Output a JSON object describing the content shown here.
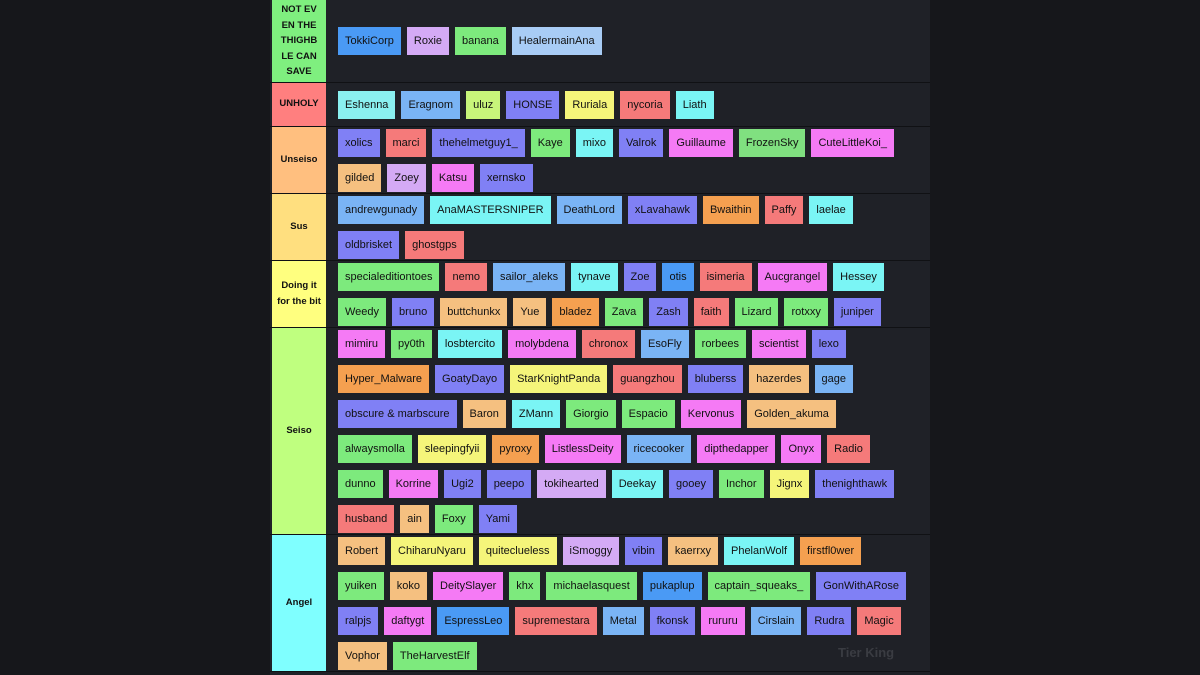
{
  "tiers": [
    {
      "label": "NOT EVEN THE THIGHBLE CAN SAVE",
      "color": "#7fef7f",
      "rows": [
        [
          {
            "name": "TokkiCorp",
            "color": "#4a9af5"
          },
          {
            "name": "Roxie",
            "color": "#d4aaf5"
          },
          {
            "name": "banana",
            "color": "#7dea7d"
          },
          {
            "name": "HealermainAna",
            "color": "#a8ccf5"
          }
        ]
      ]
    },
    {
      "label": "UNHOLY",
      "color": "#ff7f7f",
      "rows": [
        [
          {
            "name": "Eshenna",
            "color": "#8af0f0"
          },
          {
            "name": "Eragnom",
            "color": "#7ab4f5"
          },
          {
            "name": "uluz",
            "color": "#c8f57a"
          },
          {
            "name": "HONSE",
            "color": "#8080f5"
          },
          {
            "name": "Ruriala",
            "color": "#f5f57a"
          },
          {
            "name": "nycoria",
            "color": "#f57a7a"
          },
          {
            "name": "Liath",
            "color": "#7af5f5"
          }
        ]
      ]
    },
    {
      "label": "Unseiso",
      "color": "#ffbf7f",
      "rows": [
        [
          {
            "name": "xolics",
            "color": "#8080f5"
          },
          {
            "name": "marci",
            "color": "#f57a7a"
          },
          {
            "name": "thehelmetguy1_",
            "color": "#8080f5"
          },
          {
            "name": "Kaye",
            "color": "#7dea7d"
          },
          {
            "name": "mixo",
            "color": "#7af5f5"
          },
          {
            "name": "Valrok",
            "color": "#8080f5"
          },
          {
            "name": "Guillaume",
            "color": "#f57af5"
          },
          {
            "name": "FrozenSky",
            "color": "#80e080"
          },
          {
            "name": "CuteLittleKoi_",
            "color": "#f57af5"
          }
        ],
        [
          {
            "name": "gilded",
            "color": "#f5c080"
          },
          {
            "name": "Zoey",
            "color": "#d4aaf5"
          },
          {
            "name": "Katsu",
            "color": "#f57af5"
          },
          {
            "name": "xernsko",
            "color": "#8080f5"
          }
        ]
      ]
    },
    {
      "label": "Sus",
      "color": "#ffdf7f",
      "rows": [
        [
          {
            "name": "andrewgunady",
            "color": "#7ab4f5"
          },
          {
            "name": "AnaMASTERSNIPER",
            "color": "#7af5f5"
          },
          {
            "name": "DeathLord",
            "color": "#7ab4f5"
          },
          {
            "name": "xLavahawk",
            "color": "#8080f5"
          },
          {
            "name": "Bwaithin",
            "color": "#f5a050"
          },
          {
            "name": "Paffy",
            "color": "#f57a7a"
          },
          {
            "name": "laelae",
            "color": "#7af5f5"
          }
        ],
        [
          {
            "name": "oldbrisket",
            "color": "#8080f5"
          },
          {
            "name": "ghostgps",
            "color": "#f57a7a"
          }
        ]
      ]
    },
    {
      "label": "Doing it for the bit",
      "color": "#ffff7f",
      "rows": [
        [
          {
            "name": "specialeditiontoes",
            "color": "#7dea7d"
          },
          {
            "name": "nemo",
            "color": "#f57a7a"
          },
          {
            "name": "sailor_aleks",
            "color": "#7ab4f5"
          },
          {
            "name": "tynave",
            "color": "#7af5f5"
          },
          {
            "name": "Zoe",
            "color": "#8080f5"
          },
          {
            "name": "otis",
            "color": "#4a9af5"
          },
          {
            "name": "isimeria",
            "color": "#f57a7a"
          },
          {
            "name": "Aucgrangel",
            "color": "#f57af5"
          },
          {
            "name": "Hessey",
            "color": "#7af5f5"
          }
        ],
        [
          {
            "name": "Weedy",
            "color": "#7dea7d"
          },
          {
            "name": "bruno",
            "color": "#8080f5"
          },
          {
            "name": "buttchunkx",
            "color": "#f5c080"
          },
          {
            "name": "Yue",
            "color": "#f5c080"
          },
          {
            "name": "bladez",
            "color": "#f5a050"
          },
          {
            "name": "Zava",
            "color": "#7dea7d"
          },
          {
            "name": "Zash",
            "color": "#8080f5"
          },
          {
            "name": "faith",
            "color": "#f57a7a"
          },
          {
            "name": "Lizard",
            "color": "#7dea7d"
          },
          {
            "name": "rotxxy",
            "color": "#7dea7d"
          },
          {
            "name": "juniper",
            "color": "#8080f5"
          }
        ]
      ]
    },
    {
      "label": "Seiso",
      "color": "#bfff7f",
      "rows": [
        [
          {
            "name": "mimiru",
            "color": "#f57af5"
          },
          {
            "name": "py0th",
            "color": "#7dea7d"
          },
          {
            "name": "losbtercito",
            "color": "#7af5f5"
          },
          {
            "name": "molybdena",
            "color": "#f57af5"
          },
          {
            "name": "chronox",
            "color": "#f57a7a"
          },
          {
            "name": "EsoFly",
            "color": "#7ab4f5"
          },
          {
            "name": "rorbees",
            "color": "#7dea7d"
          },
          {
            "name": "scientist",
            "color": "#f57af5"
          },
          {
            "name": "lexo",
            "color": "#8080f5"
          }
        ],
        [
          {
            "name": "Hyper_Malware",
            "color": "#f5a050"
          },
          {
            "name": "GoatyDayo",
            "color": "#8080f5"
          },
          {
            "name": "StarKnightPanda",
            "color": "#f5f57a"
          },
          {
            "name": "guangzhou",
            "color": "#f57a7a"
          },
          {
            "name": "bluberss",
            "color": "#8080f5"
          },
          {
            "name": "hazerdes",
            "color": "#f5c080"
          },
          {
            "name": "gage",
            "color": "#7ab4f5"
          }
        ],
        [
          {
            "name": "obscure & marbscure",
            "color": "#8080f5"
          },
          {
            "name": "Baron",
            "color": "#f5c080"
          },
          {
            "name": "ZMann",
            "color": "#7af5f5"
          },
          {
            "name": "Giorgio",
            "color": "#7dea7d"
          },
          {
            "name": "Espacio",
            "color": "#7dea7d"
          },
          {
            "name": "Kervonus",
            "color": "#f57af5"
          },
          {
            "name": "Golden_akuma",
            "color": "#f5c080"
          }
        ],
        [
          {
            "name": "alwaysmolla",
            "color": "#7dea7d"
          },
          {
            "name": "sleepingfyii",
            "color": "#f5f57a"
          },
          {
            "name": "pyroxy",
            "color": "#f5a050"
          },
          {
            "name": "ListlessDeity",
            "color": "#f57af5"
          },
          {
            "name": "ricecooker",
            "color": "#7ab4f5"
          },
          {
            "name": "dipthedapper",
            "color": "#f57af5"
          },
          {
            "name": "Onyx",
            "color": "#f57af5"
          },
          {
            "name": "Radio",
            "color": "#f57a7a"
          }
        ],
        [
          {
            "name": "dunno",
            "color": "#7dea7d"
          },
          {
            "name": "Korrine",
            "color": "#f57af5"
          },
          {
            "name": "Ugi2",
            "color": "#8080f5"
          },
          {
            "name": "peepo",
            "color": "#8080f5"
          },
          {
            "name": "tokihearted",
            "color": "#d4aaf5"
          },
          {
            "name": "Deekay",
            "color": "#7af5f5"
          },
          {
            "name": "gooey",
            "color": "#8080f5"
          },
          {
            "name": "Inchor",
            "color": "#7dea7d"
          },
          {
            "name": "Jignx",
            "color": "#f5f57a"
          },
          {
            "name": "thenighthawk",
            "color": "#8080f5"
          }
        ],
        [
          {
            "name": "husband",
            "color": "#f57a7a"
          },
          {
            "name": "ain",
            "color": "#f5c080"
          },
          {
            "name": "Foxy",
            "color": "#7dea7d"
          },
          {
            "name": "Yami",
            "color": "#8080f5"
          }
        ]
      ]
    },
    {
      "label": "Angel",
      "color": "#7fffff",
      "rows": [
        [
          {
            "name": "Robert",
            "color": "#f5c080"
          },
          {
            "name": "ChiharuNyaru",
            "color": "#f5f57a"
          },
          {
            "name": "quiteclueless",
            "color": "#f5f57a"
          },
          {
            "name": "iSmoggy",
            "color": "#d4aaf5"
          },
          {
            "name": "vibin",
            "color": "#8080f5"
          },
          {
            "name": "kaerrxy",
            "color": "#f5c080"
          },
          {
            "name": "PhelanWolf",
            "color": "#7af5f5"
          },
          {
            "name": "firstfl0wer",
            "color": "#f5a050"
          }
        ],
        [
          {
            "name": "yuiken",
            "color": "#7dea7d"
          },
          {
            "name": "koko",
            "color": "#f5c080"
          },
          {
            "name": "DeitySlayer",
            "color": "#f57af5"
          },
          {
            "name": "khx",
            "color": "#7dea7d"
          },
          {
            "name": "michaelasquest",
            "color": "#7dea7d"
          },
          {
            "name": "pukaplup",
            "color": "#4a9af5"
          },
          {
            "name": "captain_squeaks_",
            "color": "#7dea7d"
          },
          {
            "name": "GonWithARose",
            "color": "#8080f5"
          }
        ],
        [
          {
            "name": "ralpjs",
            "color": "#8080f5"
          },
          {
            "name": "daftygt",
            "color": "#f57af5"
          },
          {
            "name": "EspressLeo",
            "color": "#4a9af5"
          },
          {
            "name": "supremestara",
            "color": "#f57a7a"
          },
          {
            "name": "Metal",
            "color": "#7ab4f5"
          },
          {
            "name": "fkonsk",
            "color": "#8080f5"
          },
          {
            "name": "rururu",
            "color": "#f57af5"
          },
          {
            "name": "Cirslain",
            "color": "#7ab4f5"
          },
          {
            "name": "Rudra",
            "color": "#8080f5"
          },
          {
            "name": "Magic",
            "color": "#f57a7a"
          }
        ],
        [
          {
            "name": "Vophor",
            "color": "#f5c080"
          },
          {
            "name": "TheHarvestElf",
            "color": "#7dea7d"
          }
        ]
      ]
    }
  ],
  "watermark": "Tier King"
}
